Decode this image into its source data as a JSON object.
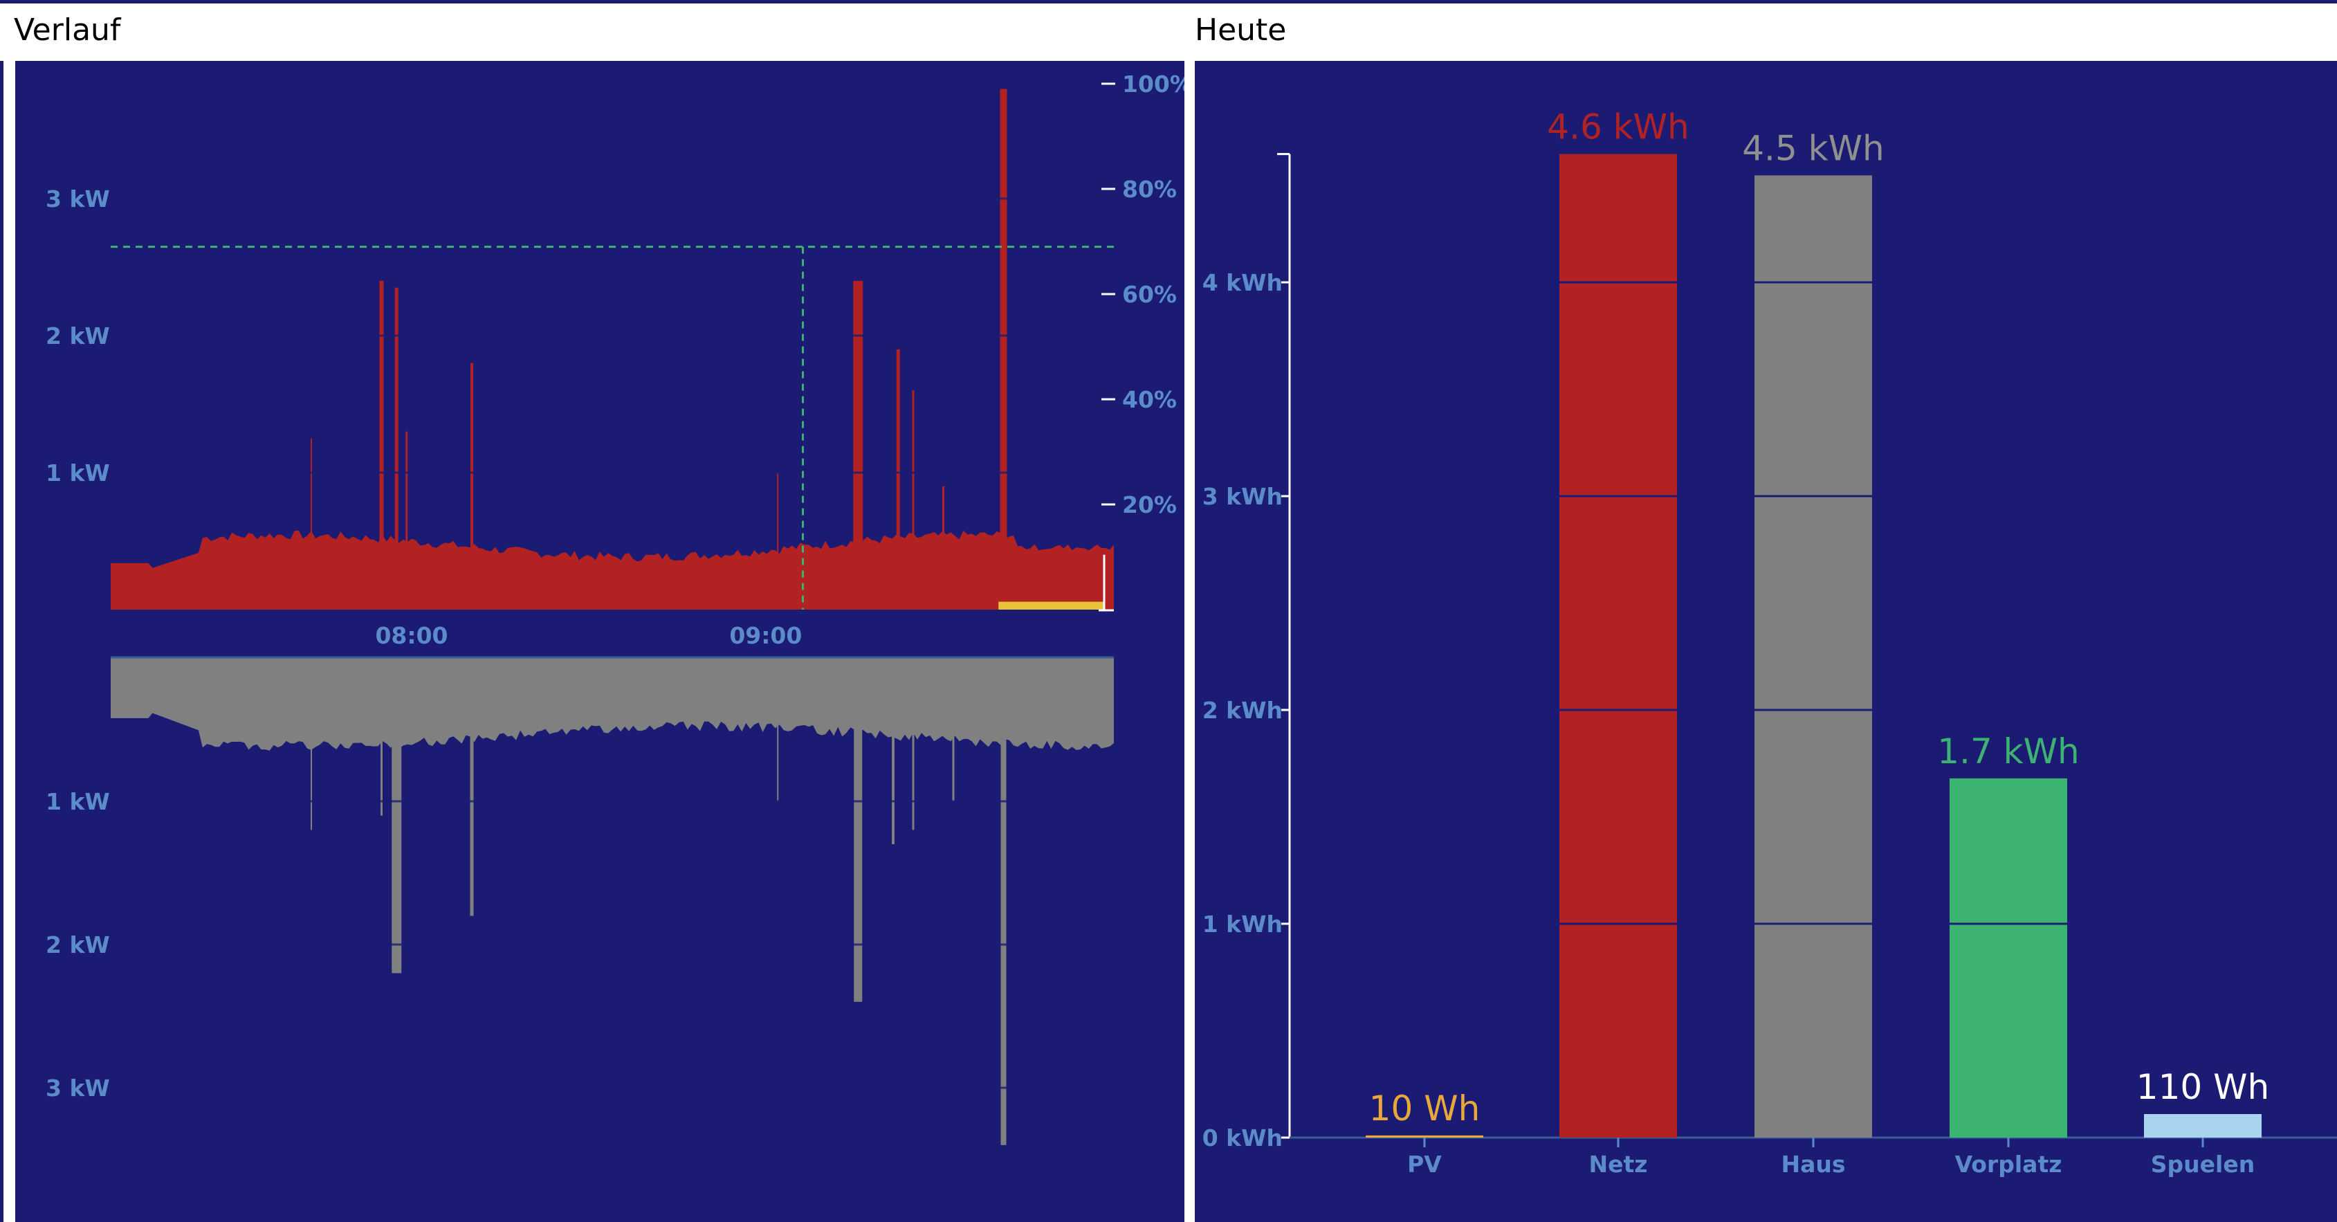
{
  "verlauf": {
    "title": "Verlauf",
    "top_y_labels": [
      "1 kW",
      "2 kW",
      "3 kW"
    ],
    "bottom_y_labels": [
      "1 kW",
      "2 kW",
      "3 kW"
    ],
    "right_percent_labels": [
      "20%",
      "40%",
      "60%",
      "80%",
      "100%"
    ],
    "x_labels": [
      "08:00",
      "09:00"
    ]
  },
  "heute": {
    "title": "Heute",
    "y_labels": [
      "0 kWh",
      "1 kWh",
      "2 kWh",
      "3 kWh",
      "4 kWh"
    ]
  },
  "colors": {
    "background": "#1b1b73",
    "netz": "#b22222",
    "haus": "#808080",
    "pv": "#e8a93a",
    "vorplatz": "#3cb371",
    "spuelen": "#a8d4f0",
    "battery": "#e8c23a",
    "axis": "#5b8cc9",
    "threshold": "#3cb371"
  },
  "chart_data": [
    {
      "type": "area",
      "panel": "Verlauf",
      "x_ticks": [
        "08:00",
        "09:00"
      ],
      "y_unit": "kW",
      "upper": {
        "name": "Netz",
        "color": "#b22222",
        "ylim": [
          0,
          3.8
        ],
        "baseline_kw": 0.4,
        "peaks_kw": [
          2.4,
          2.3,
          1.8,
          2.4,
          1.9,
          3.8
        ]
      },
      "lower": {
        "name": "Haus",
        "color": "#808080",
        "ylim": [
          0,
          3.8
        ],
        "baseline_kw": 0.5,
        "peaks_kw": [
          2.2,
          1.8,
          2.4,
          3.4
        ]
      },
      "secondary_axis": {
        "unit": "%",
        "ticks": [
          20,
          40,
          60,
          80,
          100
        ]
      },
      "threshold_percent": 69,
      "battery_percent": 1.5
    },
    {
      "type": "bar",
      "panel": "Heute",
      "categories": [
        "PV",
        "Netz",
        "Haus",
        "Vorplatz",
        "Spuelen"
      ],
      "values_kwh": [
        0.01,
        4.6,
        4.5,
        1.68,
        0.11
      ],
      "value_labels": [
        "10 Wh",
        "4.6 kWh",
        "4.5 kWh",
        "1.7 kWh",
        "110 Wh"
      ],
      "colors": [
        "#e8a93a",
        "#b22222",
        "#808080",
        "#3cb371",
        "#a8d4f0"
      ],
      "label_colors": [
        "#e8a93a",
        "#b22222",
        "#909090",
        "#3cb371",
        "#ffffff"
      ],
      "ylabel": "",
      "ylim": [
        0,
        4.6
      ]
    }
  ]
}
